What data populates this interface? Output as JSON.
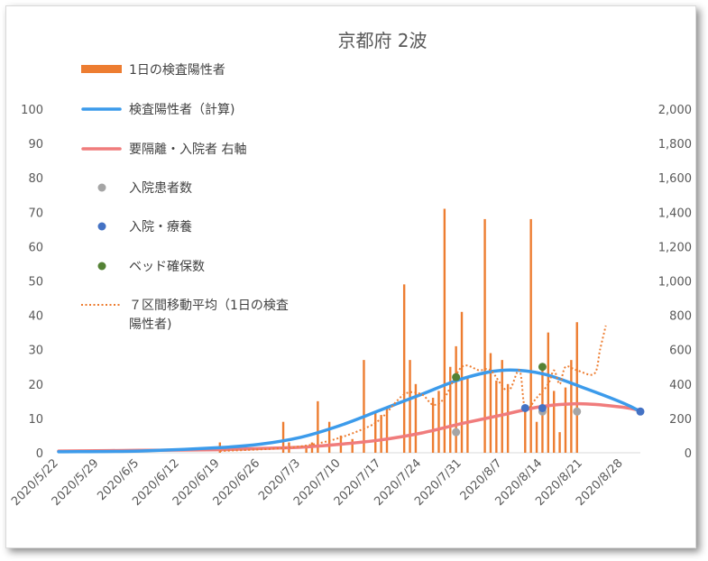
{
  "chart_data": {
    "type": "bar",
    "title": "京都府 2波",
    "x_start": "2020/5/22",
    "x_end": "2020/8/31",
    "x_tick_labels": [
      "2020/5/22",
      "2020/5/29",
      "2020/6/5",
      "2020/6/12",
      "2020/6/19",
      "2020/6/26",
      "2020/7/3",
      "2020/7/10",
      "2020/7/17",
      "2020/7/24",
      "2020/7/31",
      "2020/8/7",
      "2020/8/14",
      "2020/8/21",
      "2020/8/28"
    ],
    "y_left": {
      "min": 0,
      "max": 100,
      "ticks": [
        "0",
        "10",
        "20",
        "30",
        "40",
        "50",
        "60",
        "70",
        "80",
        "90",
        "100"
      ]
    },
    "y_right": {
      "min": 0,
      "max": 2000,
      "ticks": [
        "0",
        "200",
        "400",
        "600",
        "800",
        "1,000",
        "1,200",
        "1,400",
        "1,600",
        "1,800",
        "2,000"
      ]
    },
    "grid": false,
    "legend_position": "left",
    "legend": [
      {
        "key": "daily",
        "label": "1日の検査陽性者",
        "kind": "bar",
        "color": "#ED7D31"
      },
      {
        "key": "calc",
        "label": "検査陽性者（計算)",
        "kind": "line",
        "color": "#3C9BEB"
      },
      {
        "key": "hosp_req",
        "label": "要隔離・入院者 右軸",
        "kind": "line",
        "color": "#F07C7C"
      },
      {
        "key": "inpatients",
        "label": "入院患者数",
        "kind": "dot",
        "color": "#A5A5A5"
      },
      {
        "key": "hosp_care",
        "label": "入院・療養",
        "kind": "dot",
        "color": "#4472C4"
      },
      {
        "key": "beds",
        "label": "ベッド確保数",
        "kind": "dot",
        "color": "#548235"
      },
      {
        "key": "ma7",
        "label": "７区間移動平均（1日の検査陽性者)",
        "label_lines": [
          "７区間移動平均（1日の検査",
          "陽性者)"
        ],
        "kind": "dotted",
        "color": "#ED7D31"
      }
    ],
    "series": {
      "daily": [
        [
          "2020/6/19",
          3
        ],
        [
          "2020/6/30",
          9
        ],
        [
          "2020/7/1",
          3
        ],
        [
          "2020/7/4",
          2
        ],
        [
          "2020/7/5",
          3
        ],
        [
          "2020/7/6",
          15
        ],
        [
          "2020/7/8",
          9
        ],
        [
          "2020/7/10",
          5
        ],
        [
          "2020/7/12",
          4
        ],
        [
          "2020/7/14",
          27
        ],
        [
          "2020/7/16",
          12
        ],
        [
          "2020/7/17",
          11
        ],
        [
          "2020/7/18",
          13
        ],
        [
          "2020/7/21",
          49
        ],
        [
          "2020/7/22",
          27
        ],
        [
          "2020/7/23",
          20
        ],
        [
          "2020/7/26",
          16
        ],
        [
          "2020/7/27",
          18
        ],
        [
          "2020/7/28",
          71
        ],
        [
          "2020/7/29",
          25
        ],
        [
          "2020/7/30",
          31
        ],
        [
          "2020/7/31",
          41
        ],
        [
          "2020/8/1",
          22
        ],
        [
          "2020/8/4",
          68
        ],
        [
          "2020/8/5",
          29
        ],
        [
          "2020/8/6",
          21
        ],
        [
          "2020/8/7",
          27
        ],
        [
          "2020/8/8",
          20
        ],
        [
          "2020/8/11",
          14
        ],
        [
          "2020/8/12",
          68
        ],
        [
          "2020/8/13",
          9
        ],
        [
          "2020/8/14",
          26
        ],
        [
          "2020/8/15",
          35
        ],
        [
          "2020/8/16",
          18
        ],
        [
          "2020/8/17",
          6
        ],
        [
          "2020/8/18",
          19
        ],
        [
          "2020/8/19",
          27
        ],
        [
          "2020/8/20",
          38
        ]
      ],
      "calc": [
        [
          "2020/5/22",
          0.3
        ],
        [
          "2020/6/5",
          0.5
        ],
        [
          "2020/6/19",
          1.5
        ],
        [
          "2020/6/26",
          2.5
        ],
        [
          "2020/7/3",
          4.5
        ],
        [
          "2020/7/10",
          8
        ],
        [
          "2020/7/17",
          12.5
        ],
        [
          "2020/7/24",
          17
        ],
        [
          "2020/7/31",
          21.5
        ],
        [
          "2020/8/7",
          24
        ],
        [
          "2020/8/14",
          23
        ],
        [
          "2020/8/21",
          19
        ],
        [
          "2020/8/28",
          14.5
        ],
        [
          "2020/8/31",
          12
        ]
      ],
      "hosp_req_right": [
        [
          "2020/5/22",
          10
        ],
        [
          "2020/6/5",
          14
        ],
        [
          "2020/6/19",
          18
        ],
        [
          "2020/6/26",
          25
        ],
        [
          "2020/7/3",
          32
        ],
        [
          "2020/7/10",
          50
        ],
        [
          "2020/7/17",
          75
        ],
        [
          "2020/7/24",
          115
        ],
        [
          "2020/7/31",
          170
        ],
        [
          "2020/8/7",
          220
        ],
        [
          "2020/8/14",
          270
        ],
        [
          "2020/8/21",
          285
        ],
        [
          "2020/8/28",
          265
        ],
        [
          "2020/8/31",
          245
        ]
      ],
      "inpatients": [
        [
          "2020/7/30",
          6
        ],
        [
          "2020/8/14",
          12
        ],
        [
          "2020/8/20",
          12
        ]
      ],
      "hosp_care": [
        [
          "2020/8/11",
          13
        ],
        [
          "2020/8/14",
          13
        ],
        [
          "2020/8/31",
          12
        ]
      ],
      "beds": [
        [
          "2020/7/30",
          22
        ],
        [
          "2020/8/14",
          25
        ]
      ],
      "ma7": [
        [
          "2020/6/19",
          0.5
        ],
        [
          "2020/7/1",
          1.5
        ],
        [
          "2020/7/8",
          3.5
        ],
        [
          "2020/7/14",
          7
        ],
        [
          "2020/7/17",
          10
        ],
        [
          "2020/7/21",
          17
        ],
        [
          "2020/7/24",
          17
        ],
        [
          "2020/7/26",
          14
        ],
        [
          "2020/7/28",
          16
        ],
        [
          "2020/7/31",
          25
        ],
        [
          "2020/8/3",
          24
        ],
        [
          "2020/8/5",
          24
        ],
        [
          "2020/8/8",
          18
        ],
        [
          "2020/8/10",
          24
        ],
        [
          "2020/8/11",
          13
        ],
        [
          "2020/8/13",
          16
        ],
        [
          "2020/8/15",
          20
        ],
        [
          "2020/8/16",
          24
        ],
        [
          "2020/8/17",
          20
        ],
        [
          "2020/8/18",
          25
        ],
        [
          "2020/8/20",
          24
        ],
        [
          "2020/8/23",
          23
        ],
        [
          "2020/8/24",
          30
        ],
        [
          "2020/8/25",
          37
        ]
      ]
    }
  }
}
